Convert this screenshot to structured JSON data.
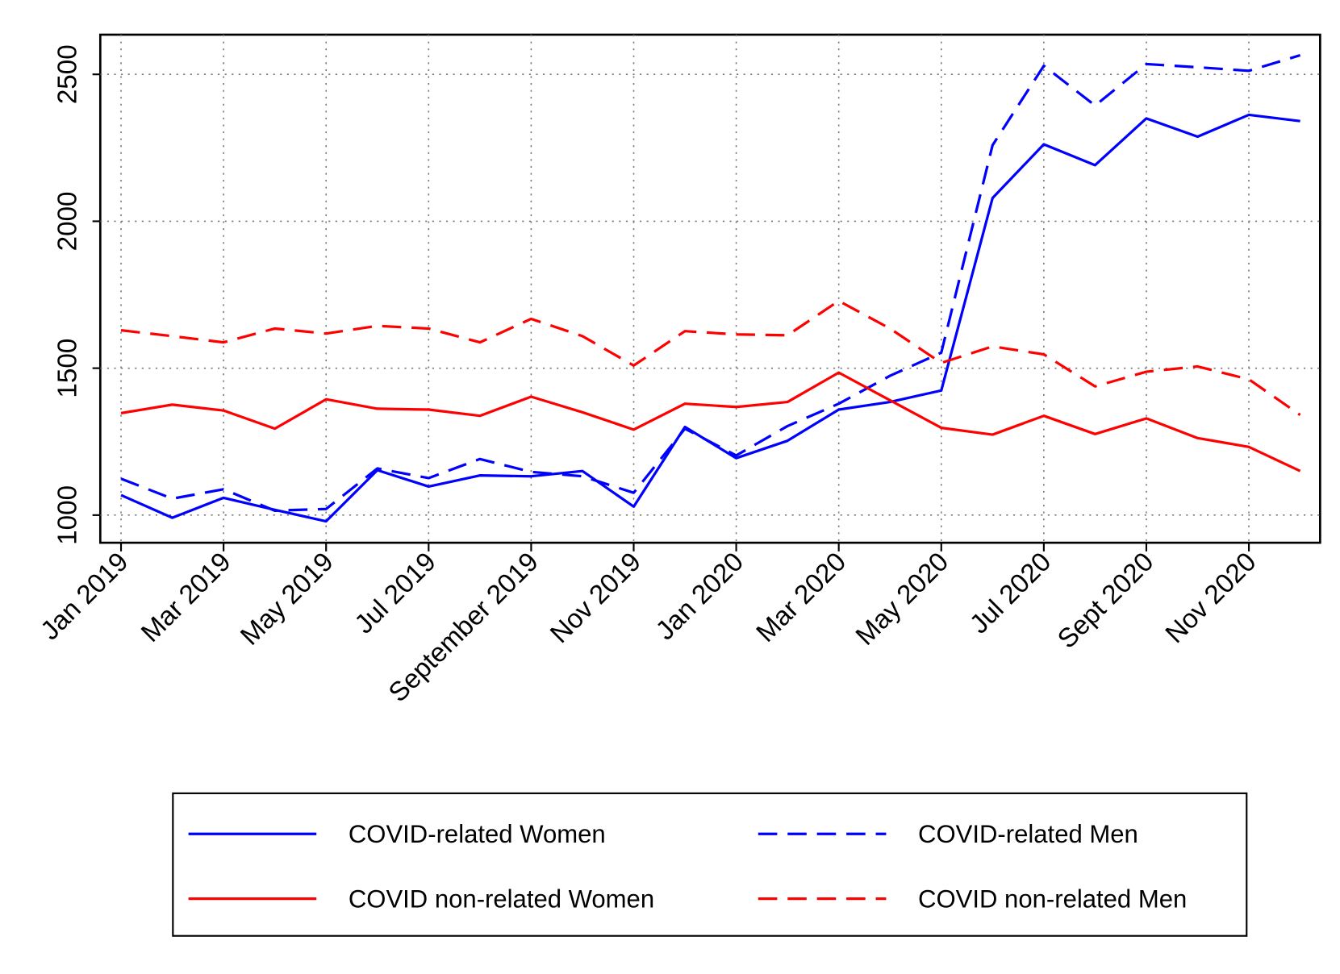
{
  "chart_data": {
    "type": "line",
    "categories": [
      "Jan 2019",
      null,
      "Mar 2019",
      null,
      "May 2019",
      null,
      "Jul 2019",
      null,
      "September 2019",
      null,
      "Nov 2019",
      null,
      "Jan 2020",
      null,
      "Mar 2020",
      null,
      "May 2020",
      null,
      "Jul 2020",
      null,
      "Sept 2020",
      null,
      "Nov 2020",
      null
    ],
    "series": [
      {
        "name": "COVID-related Women",
        "color": "#0000ff",
        "style": "solid",
        "values": [
          1068,
          991,
          1059,
          1018,
          979,
          1153,
          1097,
          1135,
          1132,
          1150,
          1029,
          1300,
          1194,
          1253,
          1359,
          1385,
          1424,
          2079,
          2262,
          2191,
          2350,
          2288,
          2362,
          2341
        ]
      },
      {
        "name": "COVID-related Men",
        "color": "#0000ff",
        "style": "dashed",
        "values": [
          1124,
          1056,
          1088,
          1015,
          1021,
          1159,
          1126,
          1191,
          1147,
          1132,
          1076,
          1294,
          1203,
          1303,
          1379,
          1474,
          1553,
          2259,
          2529,
          2394,
          2535,
          2524,
          2512,
          2565
        ]
      },
      {
        "name": "COVID non-related Women",
        "color": "#ff0000",
        "style": "solid",
        "values": [
          1347,
          1376,
          1356,
          1294,
          1394,
          1362,
          1359,
          1338,
          1403,
          1350,
          1291,
          1379,
          1368,
          1385,
          1485,
          1391,
          1297,
          1274,
          1338,
          1276,
          1329,
          1262,
          1232,
          1150
        ]
      },
      {
        "name": "COVID non-related Men",
        "color": "#ff0000",
        "style": "dashed",
        "values": [
          1629,
          1609,
          1588,
          1635,
          1618,
          1644,
          1635,
          1588,
          1668,
          1609,
          1509,
          1626,
          1615,
          1612,
          1729,
          1635,
          1518,
          1574,
          1547,
          1438,
          1488,
          1506,
          1462,
          1341
        ]
      }
    ],
    "ylim": [
      906,
      2635
    ],
    "yticks": [
      1000,
      1500,
      2000,
      2500
    ],
    "grid": true,
    "legend": "bottom"
  }
}
